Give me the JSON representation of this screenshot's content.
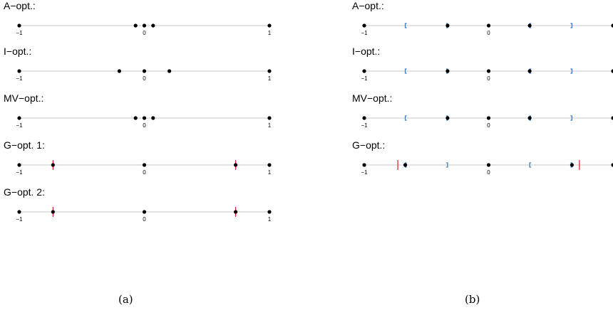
{
  "panels": [
    {
      "caption": "(a)",
      "rows": [
        {
          "label": "A−opt.:",
          "points": [
            -1,
            -0.07,
            0,
            0.07,
            1
          ],
          "red_marks": [],
          "bracket_pairs": []
        },
        {
          "label": "I−opt.:",
          "points": [
            -1,
            -0.2,
            0,
            0.2,
            1
          ],
          "red_marks": [],
          "bracket_pairs": []
        },
        {
          "label": "MV−opt.:",
          "points": [
            -1,
            -0.07,
            0,
            0.07,
            1
          ],
          "red_marks": [],
          "bracket_pairs": []
        },
        {
          "label": "G−opt. 1:",
          "points": [
            -1,
            -0.73,
            0,
            0.73,
            1
          ],
          "red_marks": [
            -0.73,
            0.73
          ],
          "bracket_pairs": []
        },
        {
          "label": "G−opt. 2:",
          "points": [
            -1,
            -0.73,
            0,
            0.73,
            1
          ],
          "red_marks": [
            -0.73,
            0.73
          ],
          "bracket_pairs": []
        }
      ]
    },
    {
      "caption": "(b)",
      "rows": [
        {
          "label": "A−opt.:",
          "points": [
            -1,
            -0.33,
            0,
            0.33,
            1
          ],
          "red_marks": [],
          "bracket_pairs": [
            [
              -0.67,
              -0.33
            ],
            [
              0.33,
              0.67
            ]
          ]
        },
        {
          "label": "I−opt.:",
          "points": [
            -1,
            -0.33,
            0,
            0.33,
            1
          ],
          "red_marks": [],
          "bracket_pairs": [
            [
              -0.67,
              -0.33
            ],
            [
              0.33,
              0.67
            ]
          ]
        },
        {
          "label": "MV−opt.:",
          "points": [
            -1,
            -0.33,
            0,
            0.33,
            1
          ],
          "red_marks": [],
          "bracket_pairs": [
            [
              -0.67,
              -0.33
            ],
            [
              0.33,
              0.67
            ]
          ]
        },
        {
          "label": "G−opt.:",
          "points": [
            -1,
            -0.67,
            0,
            0.67,
            1
          ],
          "red_marks": [
            -0.73,
            0.73
          ],
          "bracket_pairs": [
            [
              -0.67,
              -0.33
            ],
            [
              0.33,
              0.67
            ]
          ]
        }
      ]
    }
  ],
  "tick_labels": [
    "−1",
    "0",
    "1"
  ],
  "tick_values": [
    -1,
    0,
    1
  ],
  "colors": {
    "axis": "#c8c8c8",
    "point": "#000000",
    "red_mark": "#d62020",
    "bracket": "#3a7fc0"
  },
  "chart_data": [
    {
      "type": "scatter",
      "title": "(a)",
      "xlim": [
        -1,
        1
      ],
      "series": [
        {
          "name": "A−opt.:",
          "x": [
            -1,
            -0.07,
            0,
            0.07,
            1
          ]
        },
        {
          "name": "I−opt.:",
          "x": [
            -1,
            -0.2,
            0,
            0.2,
            1
          ]
        },
        {
          "name": "MV−opt.:",
          "x": [
            -1,
            -0.07,
            0,
            0.07,
            1
          ]
        },
        {
          "name": "G−opt. 1:",
          "x": [
            -1,
            -0.73,
            0,
            0.73,
            1
          ]
        },
        {
          "name": "G−opt. 2:",
          "x": [
            -1,
            -0.73,
            0,
            0.73,
            1
          ]
        }
      ]
    },
    {
      "type": "scatter",
      "title": "(b)",
      "xlim": [
        -1,
        1
      ],
      "series": [
        {
          "name": "A−opt.:",
          "x": [
            -1,
            -0.33,
            0,
            0.33,
            1
          ]
        },
        {
          "name": "I−opt.:",
          "x": [
            -1,
            -0.33,
            0,
            0.33,
            1
          ]
        },
        {
          "name": "MV−opt.:",
          "x": [
            -1,
            -0.33,
            0,
            0.33,
            1
          ]
        },
        {
          "name": "G−opt.:",
          "x": [
            -1,
            -0.67,
            0,
            0.67,
            1
          ]
        }
      ]
    }
  ]
}
